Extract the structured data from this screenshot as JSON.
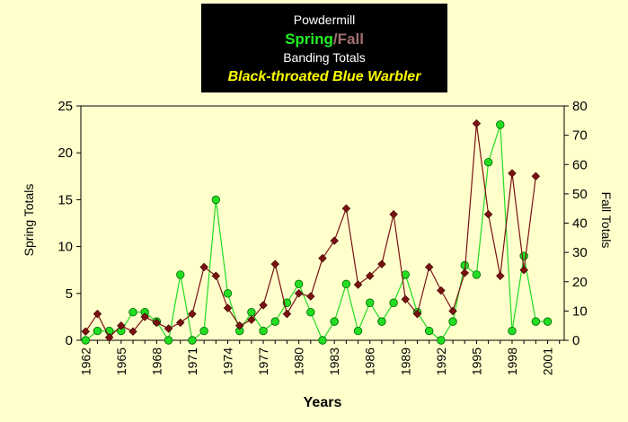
{
  "title": {
    "line1": "Powdermill",
    "spring_word": "Spring",
    "separator": "/",
    "fall_word": "Fall",
    "line3": "Banding Totals",
    "species": "Black-throated Blue Warbler"
  },
  "colors": {
    "background": "#ffffcc",
    "title_box": "#000000",
    "spring": "#22dd22",
    "fall": "#7a1212",
    "species_text": "#ffff00",
    "spring_title": "#22ee22",
    "fall_title": "#a07070"
  },
  "chart_data": {
    "type": "line",
    "xlabel": "Years",
    "ylabel_left": "Spring Totals",
    "ylabel_right": "Fall Totals",
    "ylim_left": [
      0,
      25
    ],
    "ylim_right": [
      0,
      80
    ],
    "yticks_left": [
      "0",
      "5",
      "10",
      "15",
      "20",
      "25"
    ],
    "yticks_right": [
      "0",
      "10",
      "20",
      "30",
      "40",
      "50",
      "60",
      "70",
      "80"
    ],
    "xticks": [
      "1962",
      "1965",
      "1968",
      "1971",
      "1974",
      "1977",
      "1980",
      "1983",
      "1986",
      "1989",
      "1992",
      "1995",
      "1998",
      "2001"
    ],
    "grid": false,
    "legend": "none",
    "series": [
      {
        "axis": "left",
        "marker": "circle",
        "x": [
          1962,
          1963,
          1964,
          1965,
          1966,
          1967,
          1968,
          1969,
          1970,
          1971,
          1972,
          1973,
          1974,
          1975,
          1976,
          1977,
          1978,
          1979,
          1980,
          1981,
          1982,
          1983,
          1984,
          1985,
          1986,
          1987,
          1988,
          1989,
          1990,
          1991,
          1992,
          1993,
          1994,
          1995,
          1996,
          1997,
          1998,
          1999,
          2000,
          2001
        ],
        "values": [
          0,
          1,
          1,
          1,
          3,
          3,
          2,
          0,
          7,
          0,
          1,
          15,
          5,
          1,
          3,
          1,
          2,
          4,
          6,
          3,
          0,
          2,
          6,
          1,
          4,
          2,
          4,
          7,
          3,
          1,
          0,
          2,
          8,
          7,
          19,
          23,
          1,
          9,
          2,
          2
        ]
      },
      {
        "axis": "right",
        "marker": "diamond",
        "x": [
          1962,
          1963,
          1964,
          1965,
          1966,
          1967,
          1968,
          1969,
          1970,
          1971,
          1972,
          1973,
          1974,
          1975,
          1976,
          1977,
          1978,
          1979,
          1980,
          1981,
          1982,
          1983,
          1984,
          1985,
          1986,
          1987,
          1988,
          1989,
          1990,
          1991,
          1992,
          1993,
          1994,
          1995,
          1996,
          1997,
          1998,
          1999,
          2000
        ],
        "values": [
          3,
          9,
          1,
          5,
          3,
          8,
          6,
          4,
          6,
          9,
          25,
          22,
          11,
          5,
          7,
          12,
          26,
          9,
          16,
          15,
          28,
          34,
          45,
          19,
          22,
          26,
          43,
          14,
          9,
          25,
          17,
          10,
          23,
          74,
          43,
          22,
          57,
          24,
          56
        ]
      }
    ]
  }
}
